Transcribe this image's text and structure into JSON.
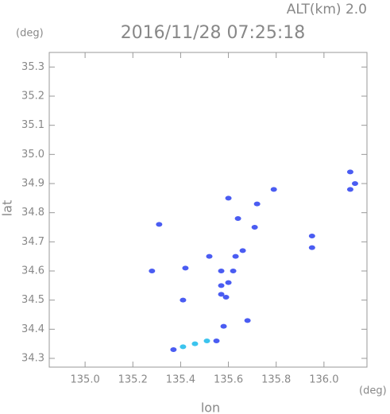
{
  "chart_data": {
    "type": "scatter",
    "title": "2016/11/28 07:25:18",
    "subtitle": "ALT(km) 2.0",
    "x_label": "lon",
    "y_label": "lat",
    "x_unit": "(deg)",
    "y_unit": "(deg)",
    "xlim": [
      134.85,
      136.18
    ],
    "ylim": [
      34.27,
      35.35
    ],
    "xticks": [
      {
        "value": 135,
        "label": "135.0"
      },
      135.2,
      135.4,
      135.6,
      135.8,
      {
        "value": 136,
        "label": "136.0"
      }
    ],
    "yticks": [
      34.3,
      34.4,
      34.5,
      34.6,
      34.7,
      34.8,
      34.9,
      {
        "value": 35,
        "label": "35.0"
      },
      35.1,
      35.2,
      35.3
    ],
    "series": [
      {
        "color": "#4a5cf2",
        "x": [
          136.11,
          136.13,
          136.11,
          135.79,
          135.95,
          135.95,
          135.6,
          135.72,
          135.71,
          135.64,
          135.31,
          135.28,
          135.42,
          135.41,
          135.52,
          135.57,
          135.63,
          135.66,
          135.57,
          135.6,
          135.57,
          135.59,
          135.62,
          135.58,
          135.68,
          135.37,
          135.55
        ],
        "values": [
          34.94,
          34.9,
          34.88,
          34.88,
          34.72,
          34.68,
          34.85,
          34.83,
          34.75,
          34.78,
          34.76,
          34.6,
          34.61,
          34.5,
          34.65,
          34.6,
          34.65,
          34.67,
          34.55,
          34.56,
          34.52,
          34.51,
          34.6,
          34.41,
          34.43,
          34.33,
          34.36
        ]
      },
      {
        "color": "#3cc4ee",
        "x": [
          135.41,
          135.46,
          135.51
        ],
        "values": [
          34.34,
          34.35,
          34.36
        ]
      }
    ]
  }
}
